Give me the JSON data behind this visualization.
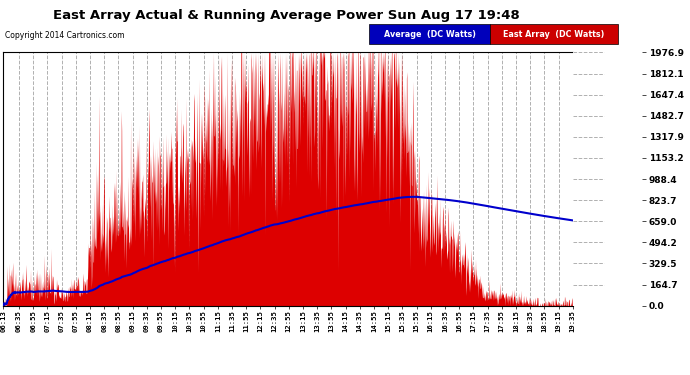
{
  "title": "East Array Actual & Running Average Power Sun Aug 17 19:48",
  "copyright": "Copyright 2014 Cartronics.com",
  "ylabel_right": [
    "0.0",
    "164.7",
    "329.5",
    "494.2",
    "659.0",
    "823.7",
    "988.4",
    "1153.2",
    "1317.9",
    "1482.7",
    "1647.4",
    "1812.1",
    "1976.9"
  ],
  "ymax": 1976.9,
  "ymin": 0.0,
  "background_color": "#ffffff",
  "grid_color": "#b0b0b0",
  "red_color": "#dd0000",
  "blue_color": "#0000cc",
  "legend_blue_bg": "#0000bb",
  "legend_red_bg": "#cc0000",
  "legend_blue_text": "Average  (DC Watts)",
  "legend_red_text": "East Array  (DC Watts)",
  "xtick_labels": [
    "06:13",
    "06:35",
    "06:55",
    "07:15",
    "07:35",
    "07:55",
    "08:15",
    "08:35",
    "08:55",
    "09:15",
    "09:35",
    "09:55",
    "10:15",
    "10:35",
    "10:55",
    "11:15",
    "11:35",
    "11:55",
    "12:15",
    "12:35",
    "12:55",
    "13:15",
    "13:35",
    "13:55",
    "14:15",
    "14:35",
    "14:55",
    "15:15",
    "15:35",
    "15:55",
    "16:15",
    "16:35",
    "16:55",
    "17:15",
    "17:35",
    "17:55",
    "18:15",
    "18:35",
    "18:55",
    "19:15",
    "19:35"
  ]
}
